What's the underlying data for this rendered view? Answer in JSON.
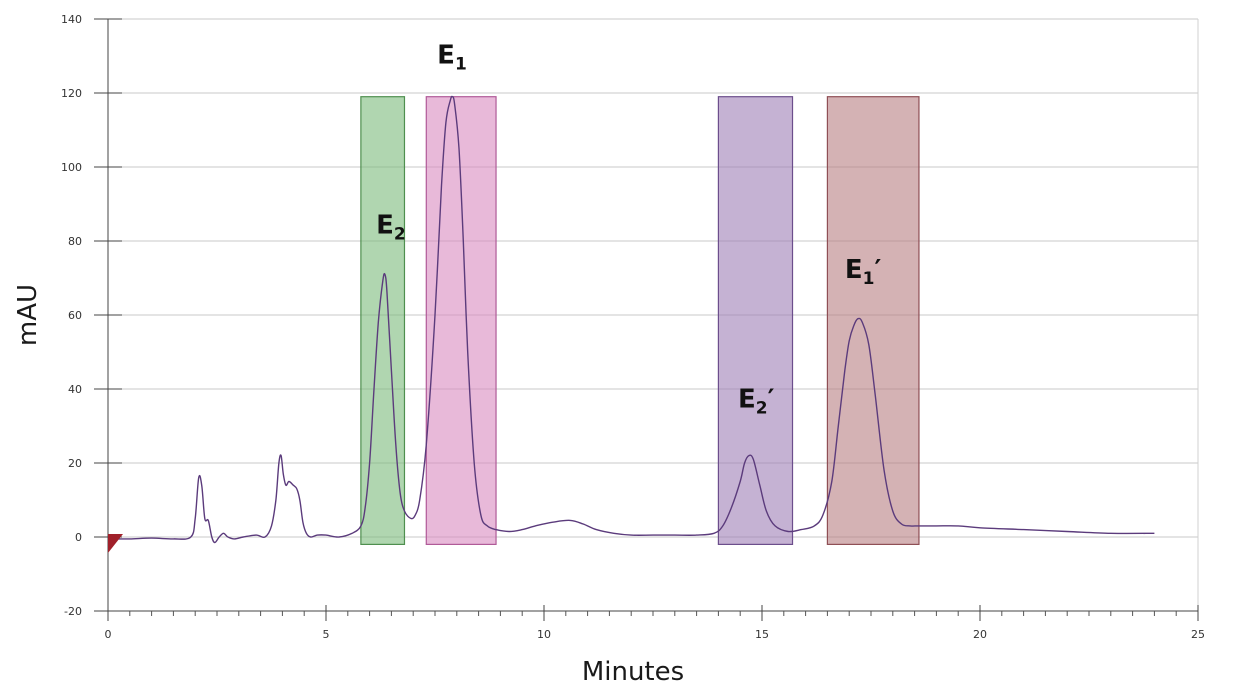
{
  "chart_data": {
    "type": "line",
    "title": "",
    "xlabel": "Minutes",
    "ylabel": "mAU",
    "xlim": [
      0,
      25
    ],
    "ylim": [
      -20,
      140
    ],
    "x_ticks": [
      "0",
      "5",
      "10",
      "15",
      "20",
      "25"
    ],
    "y_ticks": [
      "-20",
      "0",
      "20",
      "40",
      "60",
      "80",
      "100",
      "120",
      "140"
    ],
    "x_tick_values": [
      0,
      5,
      10,
      15,
      20,
      25
    ],
    "y_tick_values": [
      -20,
      0,
      20,
      40,
      60,
      80,
      100,
      120,
      140
    ],
    "x_minor_step": 0.5,
    "grid": "horizontal",
    "line_color": "#5b3b7c",
    "series": [
      {
        "x": [
          0,
          0.5,
          1,
          1.5,
          1.9,
          2.0,
          2.08,
          2.15,
          2.22,
          2.3,
          2.38,
          2.45,
          2.55,
          2.65,
          2.75,
          2.9,
          3.1,
          3.4,
          3.6,
          3.75,
          3.85,
          3.92,
          3.97,
          4.02,
          4.08,
          4.15,
          4.25,
          4.33,
          4.4,
          4.47,
          4.55,
          4.65,
          4.8,
          5.0,
          5.3,
          5.6,
          5.8,
          5.9,
          6.0,
          6.1,
          6.2,
          6.3,
          6.35,
          6.4,
          6.5,
          6.6,
          6.7,
          6.8,
          6.95,
          7.05,
          7.15,
          7.3,
          7.5,
          7.65,
          7.75,
          7.85,
          7.9,
          7.95,
          8.05,
          8.15,
          8.25,
          8.4,
          8.55,
          8.7,
          8.9,
          9.2,
          9.5,
          9.8,
          10.2,
          10.6,
          10.9,
          11.2,
          11.6,
          12.0,
          12.5,
          13.0,
          13.5,
          13.9,
          14.1,
          14.3,
          14.5,
          14.6,
          14.7,
          14.8,
          14.95,
          15.1,
          15.3,
          15.6,
          15.9,
          16.2,
          16.4,
          16.6,
          16.75,
          16.9,
          17.0,
          17.1,
          17.2,
          17.3,
          17.45,
          17.6,
          17.8,
          18.0,
          18.2,
          18.4,
          18.6,
          19.0,
          19.5,
          20.0,
          21.0,
          22.0,
          23.0,
          24.0
        ],
        "y": [
          -0.5,
          -0.5,
          -0.3,
          -0.5,
          0.0,
          5.0,
          16.0,
          14.0,
          5.0,
          4.5,
          0.0,
          -1.5,
          0.0,
          1.0,
          0.0,
          -0.5,
          0.0,
          0.5,
          0.0,
          3.0,
          10.0,
          20.0,
          22.0,
          17.0,
          14.0,
          15.0,
          14.0,
          13.0,
          10.0,
          4.0,
          1.0,
          0.0,
          0.5,
          0.5,
          0.0,
          1.0,
          3.0,
          8.0,
          20.0,
          40.0,
          58.0,
          69.0,
          71.0,
          66.0,
          45.0,
          25.0,
          12.0,
          7.0,
          5.0,
          6.0,
          10.0,
          25.0,
          60.0,
          95.0,
          112.0,
          118.0,
          119.0,
          117.0,
          105.0,
          80.0,
          50.0,
          20.0,
          6.0,
          3.0,
          2.0,
          1.5,
          2.0,
          3.0,
          4.0,
          4.5,
          3.5,
          2.0,
          1.0,
          0.5,
          0.5,
          0.5,
          0.5,
          1.0,
          3.0,
          8.0,
          15.0,
          20.0,
          22.0,
          21.0,
          14.0,
          7.0,
          3.0,
          1.5,
          2.0,
          3.0,
          6.0,
          15.0,
          30.0,
          45.0,
          53.0,
          57.0,
          59.0,
          58.0,
          52.0,
          38.0,
          18.0,
          7.0,
          3.5,
          3.0,
          3.0,
          3.0,
          3.0,
          2.5,
          2.0,
          1.5,
          1.0,
          1.0
        ]
      }
    ],
    "regions": [
      {
        "label": "E",
        "sub": "2",
        "prime": "",
        "x_start": 5.8,
        "x_end": 6.8,
        "y_start": -2,
        "y_end": 119,
        "fill": "#7cba7c",
        "stroke": "#4f8f4f"
      },
      {
        "label": "E",
        "sub": "1",
        "prime": "",
        "x_start": 7.3,
        "x_end": 8.9,
        "y_start": -2,
        "y_end": 119,
        "fill": "#d88ac0",
        "stroke": "#b05a98"
      },
      {
        "label": "E",
        "sub": "2",
        "prime": "′",
        "x_start": 14.0,
        "x_end": 15.7,
        "y_start": -2,
        "y_end": 119,
        "fill": "#9f7fb6",
        "stroke": "#6c4e8c"
      },
      {
        "label": "E",
        "sub": "1",
        "prime": "′",
        "x_start": 16.5,
        "x_end": 18.6,
        "y_start": -2,
        "y_end": 119,
        "fill": "#b87f82",
        "stroke": "#8f4f55"
      }
    ],
    "peak_labels": [
      {
        "label": "E",
        "sub": "2",
        "prime": "",
        "x": 6.15,
        "y": 82
      },
      {
        "label": "E",
        "sub": "1",
        "prime": "",
        "x": 7.55,
        "y": 128
      },
      {
        "label": "E",
        "sub": "2",
        "prime": "′",
        "x": 14.45,
        "y": 35
      },
      {
        "label": "E",
        "sub": "1",
        "prime": "′",
        "x": 16.9,
        "y": 70
      }
    ],
    "marker": {
      "x": 0,
      "y": 0,
      "color": "#a0202a"
    }
  }
}
